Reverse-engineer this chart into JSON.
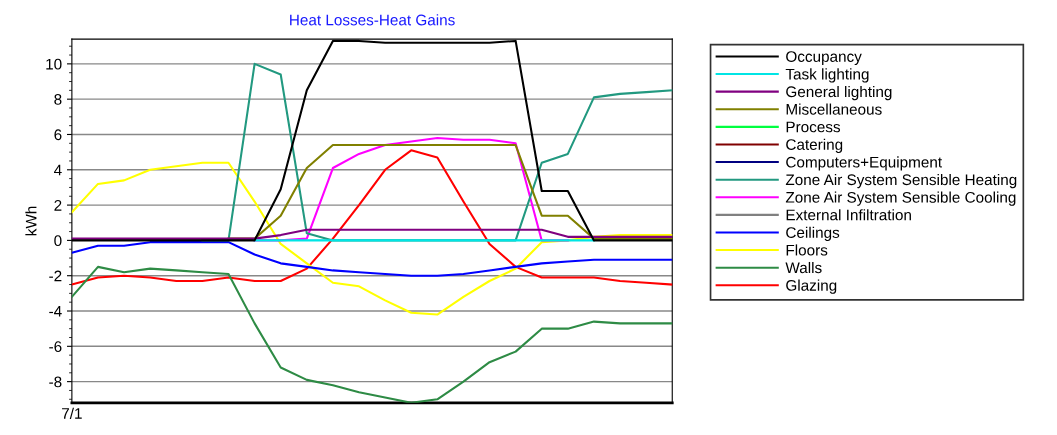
{
  "chart_data": {
    "type": "line",
    "title": "Heat Losses-Heat Gains",
    "ylabel": "kWh",
    "categories": [
      "7/1",
      null,
      null,
      null,
      null,
      null,
      null,
      null,
      null,
      null,
      null,
      null,
      null,
      null,
      null,
      null,
      null,
      null,
      null,
      null,
      null,
      null,
      null,
      null
    ],
    "ylim": [
      -9.2,
      11.4
    ],
    "yticks": [
      -8,
      -6,
      -4,
      -2,
      0,
      2,
      4,
      6,
      8,
      10
    ],
    "grid": "y",
    "legend": "right",
    "series": [
      {
        "name": "Occupancy",
        "color": "#000000",
        "values": [
          0,
          0,
          0,
          0,
          0,
          0,
          0,
          0,
          2.9,
          8.5,
          11.3,
          11.3,
          11.2,
          11.2,
          11.2,
          11.2,
          11.2,
          11.3,
          2.8,
          2.8,
          0,
          0,
          0,
          0
        ]
      },
      {
        "name": "Task lighting",
        "color": "#00e5e5",
        "values": [
          null,
          null,
          null,
          null,
          null,
          null,
          null,
          0,
          0,
          0,
          0,
          0,
          0,
          0,
          0,
          0,
          0,
          0,
          0,
          0,
          0,
          null,
          null,
          null
        ]
      },
      {
        "name": "General lighting",
        "color": "#800080",
        "values": [
          0.1,
          0.1,
          0.1,
          0.1,
          0.1,
          0.1,
          0.1,
          0.1,
          0.3,
          0.6,
          0.6,
          0.6,
          0.6,
          0.6,
          0.6,
          0.6,
          0.6,
          0.6,
          0.6,
          0.2,
          0.2,
          0.2,
          0.2,
          0.2
        ]
      },
      {
        "name": "Miscellaneous",
        "color": "#808000",
        "values": [
          null,
          null,
          null,
          null,
          null,
          null,
          0.1,
          0.1,
          1.4,
          4.1,
          5.4,
          5.4,
          5.4,
          5.4,
          5.4,
          5.4,
          5.4,
          5.4,
          1.4,
          1.4,
          0.1,
          0.1,
          0.1,
          0.1
        ]
      },
      {
        "name": "Process",
        "color": "#00ff40",
        "values": [
          null,
          null,
          null,
          null,
          null,
          null,
          null,
          null,
          null,
          null,
          null,
          null,
          null,
          null,
          null,
          null,
          null,
          null,
          null,
          null,
          null,
          null,
          null,
          null
        ]
      },
      {
        "name": "Catering",
        "color": "#800000",
        "values": [
          null,
          null,
          null,
          null,
          null,
          null,
          null,
          null,
          null,
          null,
          null,
          null,
          null,
          null,
          null,
          null,
          null,
          null,
          null,
          null,
          null,
          null,
          null,
          null
        ]
      },
      {
        "name": "Computers+Equipment",
        "color": "#000080",
        "values": [
          null,
          null,
          null,
          null,
          null,
          null,
          null,
          null,
          null,
          null,
          null,
          null,
          null,
          null,
          null,
          null,
          null,
          null,
          null,
          null,
          null,
          null,
          null,
          null
        ]
      },
      {
        "name": "Zone Air System Sensible Heating",
        "color": "#229980",
        "values": [
          null,
          null,
          null,
          null,
          null,
          0,
          0,
          10,
          9.4,
          0.4,
          0,
          0,
          0,
          0,
          0,
          0,
          0,
          0,
          4.4,
          4.9,
          8.1,
          8.3,
          8.4,
          8.5
        ]
      },
      {
        "name": "Zone Air System Sensible Cooling",
        "color": "#ff00ff",
        "values": [
          null,
          null,
          null,
          null,
          null,
          null,
          null,
          0,
          0,
          0.1,
          4.1,
          4.9,
          5.4,
          5.6,
          5.8,
          5.7,
          5.7,
          5.5,
          0,
          0,
          null,
          null,
          null,
          null
        ]
      },
      {
        "name": "External Infiltration",
        "color": "#808080",
        "values": [
          null,
          null,
          null,
          null,
          null,
          null,
          null,
          null,
          null,
          null,
          null,
          null,
          null,
          null,
          null,
          null,
          null,
          null,
          null,
          null,
          null,
          null,
          null,
          null
        ]
      },
      {
        "name": "Ceilings",
        "color": "#0000ff",
        "values": [
          -0.7,
          -0.3,
          -0.3,
          -0.1,
          -0.1,
          -0.1,
          -0.1,
          -0.8,
          -1.3,
          -1.5,
          -1.7,
          -1.8,
          -1.9,
          -2.0,
          -2.0,
          -1.9,
          -1.7,
          -1.5,
          -1.3,
          -1.2,
          -1.1,
          -1.1,
          -1.1,
          -1.1
        ]
      },
      {
        "name": "Floors",
        "color": "#ffff00",
        "values": [
          1.6,
          3.2,
          3.4,
          4.0,
          4.2,
          4.4,
          4.4,
          2.2,
          -0.2,
          -1.3,
          -2.4,
          -2.6,
          -3.4,
          -4.1,
          -4.2,
          -3.2,
          -2.3,
          -1.6,
          -0.1,
          0,
          0.2,
          0.3,
          0.3,
          0.3
        ]
      },
      {
        "name": "Walls",
        "color": "#2e8b45",
        "values": [
          -3.2,
          -1.5,
          -1.8,
          -1.6,
          -1.7,
          -1.8,
          -1.9,
          -4.7,
          -7.2,
          -7.9,
          -8.2,
          -8.6,
          -8.9,
          -9.2,
          -9.0,
          -8.0,
          -6.9,
          -6.3,
          -5.0,
          -5.0,
          -4.6,
          -4.7,
          -4.7,
          -4.7
        ]
      },
      {
        "name": "Glazing",
        "color": "#ff0000",
        "values": [
          -2.5,
          -2.1,
          -2.0,
          -2.1,
          -2.3,
          -2.3,
          -2.1,
          -2.3,
          -2.3,
          -1.6,
          0.1,
          2.0,
          4.0,
          5.1,
          4.7,
          2.2,
          -0.2,
          -1.5,
          -2.1,
          -2.1,
          -2.1,
          -2.3,
          -2.4,
          -2.5
        ]
      }
    ]
  }
}
